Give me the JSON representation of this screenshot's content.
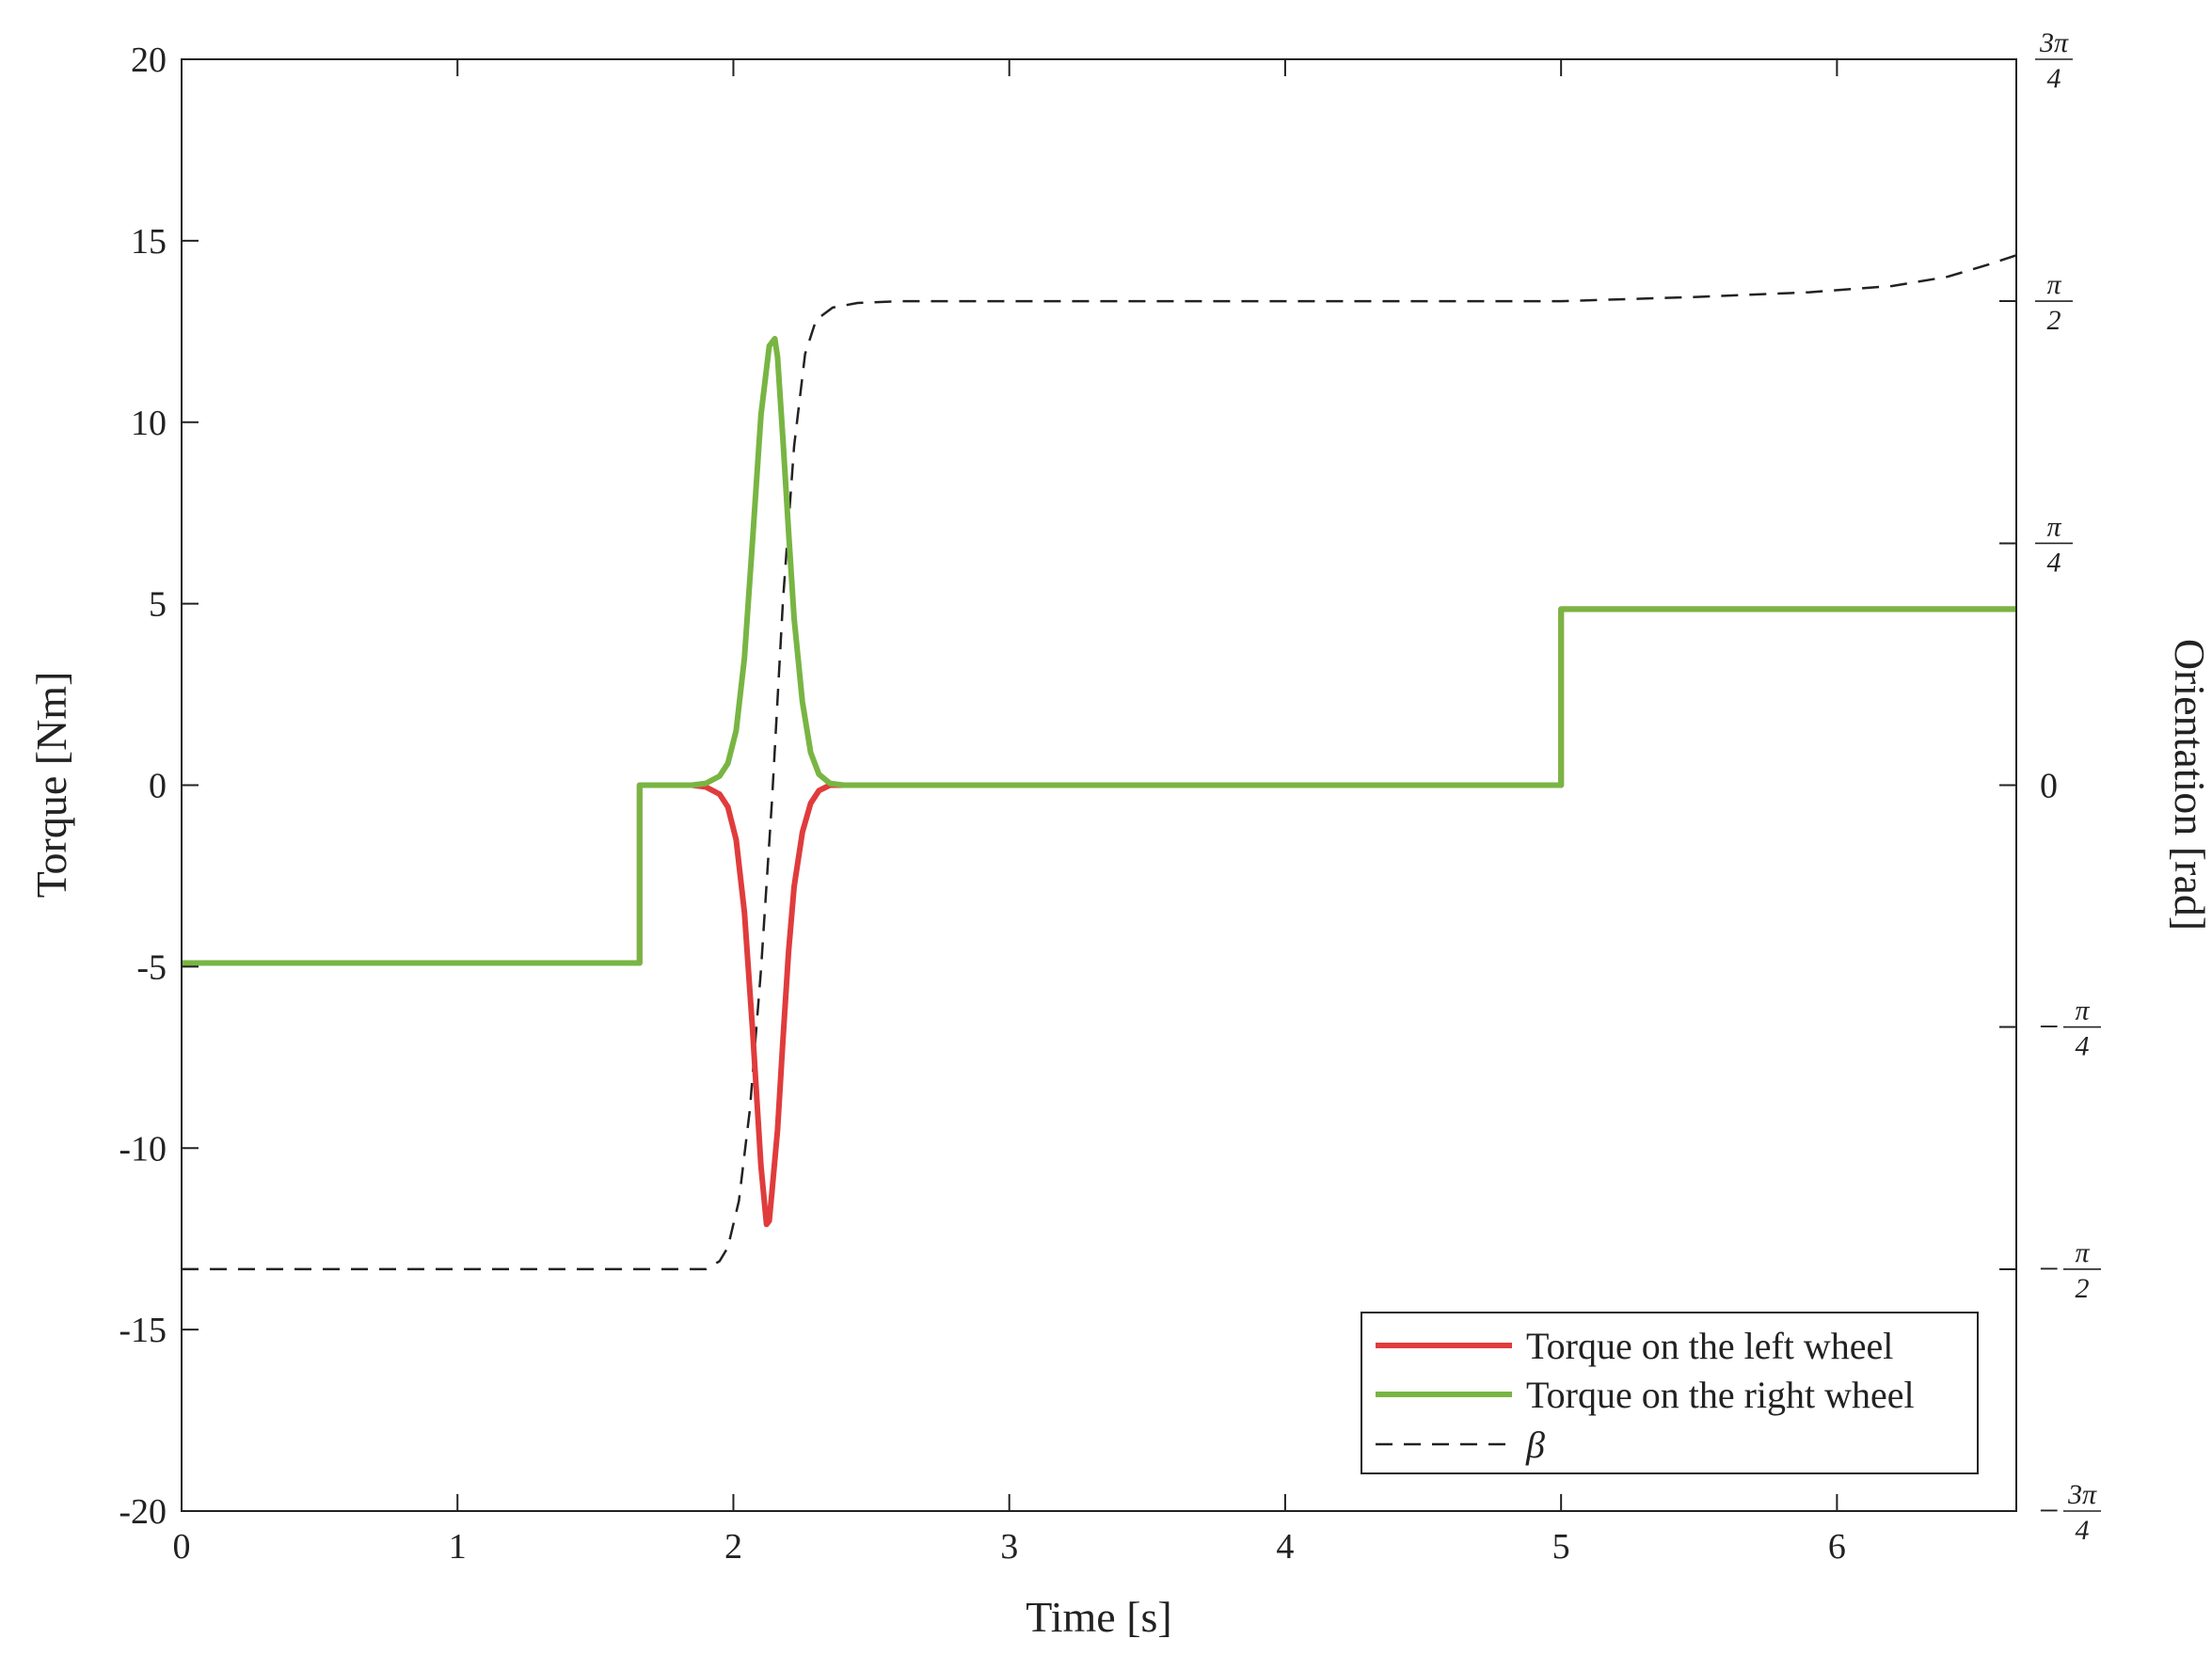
{
  "chart_data": {
    "type": "line",
    "xlabel": "Time [s]",
    "ylabel_left": "Torque [Nm]",
    "ylabel_right": "Orientation [rad]",
    "xlim": [
      0,
      6.65
    ],
    "ylim_left": [
      -20,
      20
    ],
    "ylim_right": [
      -2.356,
      2.356
    ],
    "x_ticks": [
      "0",
      "1",
      "2",
      "3",
      "4",
      "5",
      "6"
    ],
    "y_ticks_left": [
      "20",
      "15",
      "10",
      "5",
      "0",
      "-5",
      "-10",
      "-15",
      "-20"
    ],
    "y_ticks_right": [
      {
        "sign": "",
        "num": "3π",
        "den": "4",
        "value": 2.356
      },
      {
        "sign": "",
        "num": "π",
        "den": "2",
        "value": 1.571
      },
      {
        "sign": "",
        "num": "π",
        "den": "4",
        "value": 0.785
      },
      {
        "sign": "",
        "num": "0",
        "den": "",
        "value": 0
      },
      {
        "sign": "−",
        "num": "π",
        "den": "4",
        "value": -0.785
      },
      {
        "sign": "−",
        "num": "π",
        "den": "2",
        "value": -1.571
      },
      {
        "sign": "−",
        "num": "3π",
        "den": "4",
        "value": -2.356
      }
    ],
    "grid": false,
    "legend_position": "bottom-right",
    "series": [
      {
        "name": "Torque on the left wheel",
        "axis": "left",
        "color": "#e03c3c",
        "style": "solid",
        "x": [
          0,
          1.66,
          1.66,
          1.75,
          1.85,
          1.9,
          1.95,
          1.98,
          2.01,
          2.04,
          2.07,
          2.1,
          2.12,
          2.13,
          2.14,
          2.16,
          2.18,
          2.2,
          2.22,
          2.25,
          2.28,
          2.31,
          2.35,
          2.4,
          5.0,
          5.0,
          6.65
        ],
        "y": [
          -4.9,
          -4.9,
          0,
          0,
          0,
          -0.05,
          -0.25,
          -0.6,
          -1.5,
          -3.5,
          -6.8,
          -10.5,
          -12.1,
          -12.0,
          -11.2,
          -9.5,
          -7.0,
          -4.6,
          -2.8,
          -1.3,
          -0.5,
          -0.15,
          0,
          0,
          0,
          4.85,
          4.85
        ]
      },
      {
        "name": "Torque on the right wheel",
        "axis": "left",
        "color": "#78b543",
        "style": "solid",
        "x": [
          0,
          1.66,
          1.66,
          1.75,
          1.85,
          1.9,
          1.95,
          1.98,
          2.01,
          2.04,
          2.07,
          2.1,
          2.13,
          2.15,
          2.16,
          2.18,
          2.2,
          2.22,
          2.25,
          2.28,
          2.31,
          2.35,
          2.4,
          5.0,
          5.0,
          6.65
        ],
        "y": [
          -4.9,
          -4.9,
          0,
          0,
          0,
          0.05,
          0.25,
          0.6,
          1.5,
          3.5,
          6.8,
          10.2,
          12.1,
          12.3,
          11.8,
          9.5,
          7.0,
          4.6,
          2.3,
          0.9,
          0.3,
          0.05,
          0,
          0,
          4.85,
          4.85
        ]
      },
      {
        "name": "β",
        "axis": "right",
        "color": "#222222",
        "style": "dashed",
        "x": [
          0,
          1.9,
          1.95,
          1.98,
          2.02,
          2.06,
          2.1,
          2.14,
          2.18,
          2.22,
          2.26,
          2.3,
          2.36,
          2.45,
          2.6,
          3.0,
          4.0,
          5.0,
          5.5,
          5.9,
          6.2,
          6.4,
          6.55,
          6.65
        ],
        "y": [
          -1.571,
          -1.571,
          -1.545,
          -1.5,
          -1.35,
          -1.05,
          -0.6,
          -0.05,
          0.6,
          1.1,
          1.4,
          1.51,
          1.55,
          1.565,
          1.571,
          1.571,
          1.571,
          1.571,
          1.585,
          1.6,
          1.62,
          1.65,
          1.69,
          1.72
        ]
      }
    ]
  }
}
